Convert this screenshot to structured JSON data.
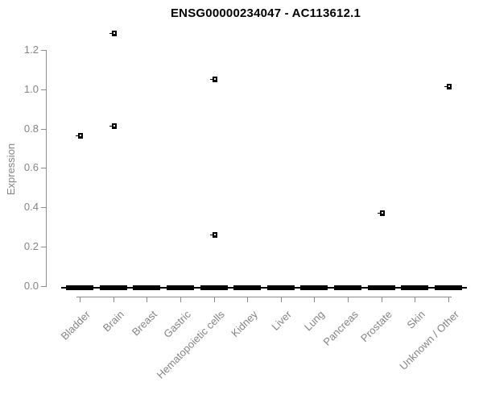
{
  "title": "ENSG00000234047 - AC113612.1",
  "colors": {
    "background": "#ffffff",
    "title_text": "#000000",
    "axis_line": "#8c8c8c",
    "tick_text": "#848484",
    "box": "#000000",
    "marker": "#000000"
  },
  "chart_data": {
    "type": "boxplot",
    "title": "ENSG00000234047 - AC113612.1",
    "xlabel": "",
    "ylabel": "Expression",
    "ylim": [
      0,
      1.3
    ],
    "yticks": [
      0,
      0.2,
      0.4,
      0.6,
      0.8,
      1.0,
      1.2
    ],
    "ytick_labels": [
      "0.0",
      "0.2",
      "0.4",
      "0.6",
      "0.8",
      "1.0",
      "1.2"
    ],
    "categories": [
      "Bladder",
      "Brain",
      "Breast",
      "Gastric",
      "Hematopoietic cells",
      "Kidney",
      "Liver",
      "Lung",
      "Pancreas",
      "Prostate",
      "Skin",
      "Unknown / Other"
    ],
    "medians": [
      0,
      0,
      0,
      0,
      0,
      0,
      0,
      0,
      0,
      0,
      0,
      0
    ],
    "outliers": [
      {
        "category": "Bladder",
        "value": 0.76
      },
      {
        "category": "Brain",
        "value": 1.28
      },
      {
        "category": "Brain",
        "value": 0.81
      },
      {
        "category": "Hematopoietic cells",
        "value": 1.05
      },
      {
        "category": "Hematopoietic cells",
        "value": 0.26
      },
      {
        "category": "Prostate",
        "value": 0.37
      },
      {
        "category": "Unknown / Other",
        "value": 1.01
      }
    ],
    "grid": false,
    "legend": false
  }
}
